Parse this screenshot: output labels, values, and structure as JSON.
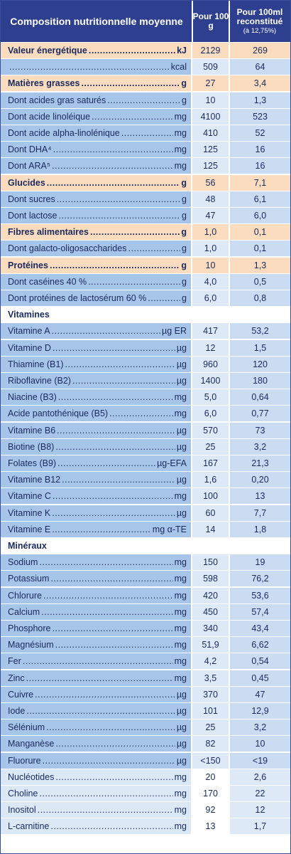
{
  "header": {
    "col1": "Composition nutritionnelle moyenne",
    "col2": "Pour 100 g",
    "col3_main": "Pour 100ml reconstitué",
    "col3_sub": "(à 12,75%)"
  },
  "rows": [
    {
      "type": "orange",
      "label": "Valeur énergétique",
      "unit": "kJ",
      "v1": "2129",
      "v2": "269"
    },
    {
      "type": "blue",
      "label": "",
      "unit": "kcal",
      "v1": "509",
      "v2": "64"
    },
    {
      "type": "orange",
      "label": "Matières grasses",
      "unit": "g",
      "v1": "27",
      "v2": "3,4"
    },
    {
      "type": "blue",
      "label": "Dont acides gras saturés",
      "unit": "g",
      "v1": "10",
      "v2": "1,3"
    },
    {
      "type": "blue",
      "label": "Dont acide linoléique",
      "unit": "mg",
      "v1": "4100",
      "v2": "523"
    },
    {
      "type": "blue",
      "label": "Dont acide alpha-linolénique",
      "unit": "mg",
      "v1": "410",
      "v2": "52"
    },
    {
      "type": "blue",
      "label": "Dont DHA⁴",
      "unit": "mg",
      "v1": "125",
      "v2": "16"
    },
    {
      "type": "blue",
      "label": "Dont ARA⁵",
      "unit": "mg",
      "v1": "125",
      "v2": "16"
    },
    {
      "type": "orange",
      "label": "Glucides",
      "unit": "g",
      "v1": "56",
      "v2": "7,1"
    },
    {
      "type": "blue",
      "label": "Dont sucres",
      "unit": "g",
      "v1": "48",
      "v2": "6,1"
    },
    {
      "type": "blue",
      "label": "Dont lactose",
      "unit": "g",
      "v1": "47",
      "v2": "6,0"
    },
    {
      "type": "orange",
      "label": "Fibres alimentaires",
      "unit": "g",
      "v1": "1,0",
      "v2": "0,1"
    },
    {
      "type": "blue",
      "label": "Dont galacto-oligosaccharides",
      "unit": "g",
      "v1": "1,0",
      "v2": "0,1"
    },
    {
      "type": "orange",
      "label": "Protéines",
      "unit": "g",
      "v1": "10",
      "v2": "1,3"
    },
    {
      "type": "blue",
      "label": "Dont caséines 40 %",
      "unit": "g",
      "v1": "4,0",
      "v2": "0,5"
    },
    {
      "type": "blue",
      "label": "Dont protéines de lactosérum 60 %",
      "unit": "g",
      "v1": "6,0",
      "v2": "0,8"
    },
    {
      "type": "section",
      "label": "Vitamines",
      "unit": "",
      "v1": "",
      "v2": ""
    },
    {
      "type": "blue",
      "label": "Vitamine A",
      "unit": "µg ER",
      "v1": "417",
      "v2": "53,2"
    },
    {
      "type": "blue",
      "label": "Vitamine D",
      "unit": "µg",
      "v1": "12",
      "v2": "1,5"
    },
    {
      "type": "blue",
      "label": "Thiamine (B1)",
      "unit": "µg",
      "v1": "960",
      "v2": "120"
    },
    {
      "type": "blue",
      "label": "Riboflavine (B2)",
      "unit": "µg",
      "v1": "1400",
      "v2": "180"
    },
    {
      "type": "blue",
      "label": "Niacine (B3)",
      "unit": "mg",
      "v1": "5,0",
      "v2": "0,64"
    },
    {
      "type": "blue",
      "label": "Acide pantothénique (B5)",
      "unit": "mg",
      "v1": "6,0",
      "v2": "0,77"
    },
    {
      "type": "blue",
      "label": "Vitamine B6",
      "unit": "µg",
      "v1": "570",
      "v2": "73"
    },
    {
      "type": "blue",
      "label": "Biotine (B8)",
      "unit": "µg",
      "v1": "25",
      "v2": "3,2"
    },
    {
      "type": "blue",
      "label": "Folates (B9)",
      "unit": "µg-EFA",
      "v1": "167",
      "v2": "21,3"
    },
    {
      "type": "blue",
      "label": "Vitamine B12",
      "unit": "µg",
      "v1": "1,6",
      "v2": "0,20"
    },
    {
      "type": "blue",
      "label": "Vitamine C",
      "unit": "mg",
      "v1": "100",
      "v2": "13"
    },
    {
      "type": "blue",
      "label": "Vitamine K",
      "unit": "µg",
      "v1": "60",
      "v2": "7,7"
    },
    {
      "type": "blue",
      "label": "Vitamine E",
      "unit": "mg α-TE",
      "v1": "14",
      "v2": "1,8"
    },
    {
      "type": "section",
      "label": "Minéraux",
      "unit": "",
      "v1": "",
      "v2": ""
    },
    {
      "type": "blue",
      "label": "Sodium",
      "unit": "mg",
      "v1": "150",
      "v2": "19"
    },
    {
      "type": "blue",
      "label": "Potassium",
      "unit": "mg",
      "v1": "598",
      "v2": "76,2"
    },
    {
      "type": "blue",
      "label": "Chlorure",
      "unit": "mg",
      "v1": "420",
      "v2": "53,6"
    },
    {
      "type": "blue",
      "label": "Calcium",
      "unit": "mg",
      "v1": "450",
      "v2": "57,4"
    },
    {
      "type": "blue",
      "label": "Phosphore",
      "unit": "mg",
      "v1": "340",
      "v2": "43,4"
    },
    {
      "type": "blue",
      "label": "Magnésium",
      "unit": "mg",
      "v1": "51,9",
      "v2": "6,62"
    },
    {
      "type": "blue",
      "label": "Fer",
      "unit": "mg",
      "v1": "4,2",
      "v2": "0,54"
    },
    {
      "type": "blue",
      "label": "Zinc",
      "unit": "mg",
      "v1": "3,5",
      "v2": "0,45"
    },
    {
      "type": "blue",
      "label": "Cuivre",
      "unit": "µg",
      "v1": "370",
      "v2": "47"
    },
    {
      "type": "blue",
      "label": "Iode",
      "unit": "µg",
      "v1": "101",
      "v2": "12,9"
    },
    {
      "type": "blue",
      "label": "Sélénium",
      "unit": "µg",
      "v1": "25",
      "v2": "3,2"
    },
    {
      "type": "blue",
      "label": "Manganèse",
      "unit": "µg",
      "v1": "82",
      "v2": "10"
    },
    {
      "type": "blue",
      "label": "Fluorure",
      "unit": "µg",
      "v1": "<150",
      "v2": "<19"
    },
    {
      "type": "light",
      "label": "Nucléotides",
      "unit": "mg",
      "v1": "20",
      "v2": "2,6"
    },
    {
      "type": "light",
      "label": "Choline",
      "unit": "mg",
      "v1": "170",
      "v2": "22"
    },
    {
      "type": "light",
      "label": "Inositol",
      "unit": "mg",
      "v1": "92",
      "v2": "12"
    },
    {
      "type": "light",
      "label": "L-carnitine",
      "unit": "mg",
      "v1": "13",
      "v2": "1,7"
    }
  ]
}
